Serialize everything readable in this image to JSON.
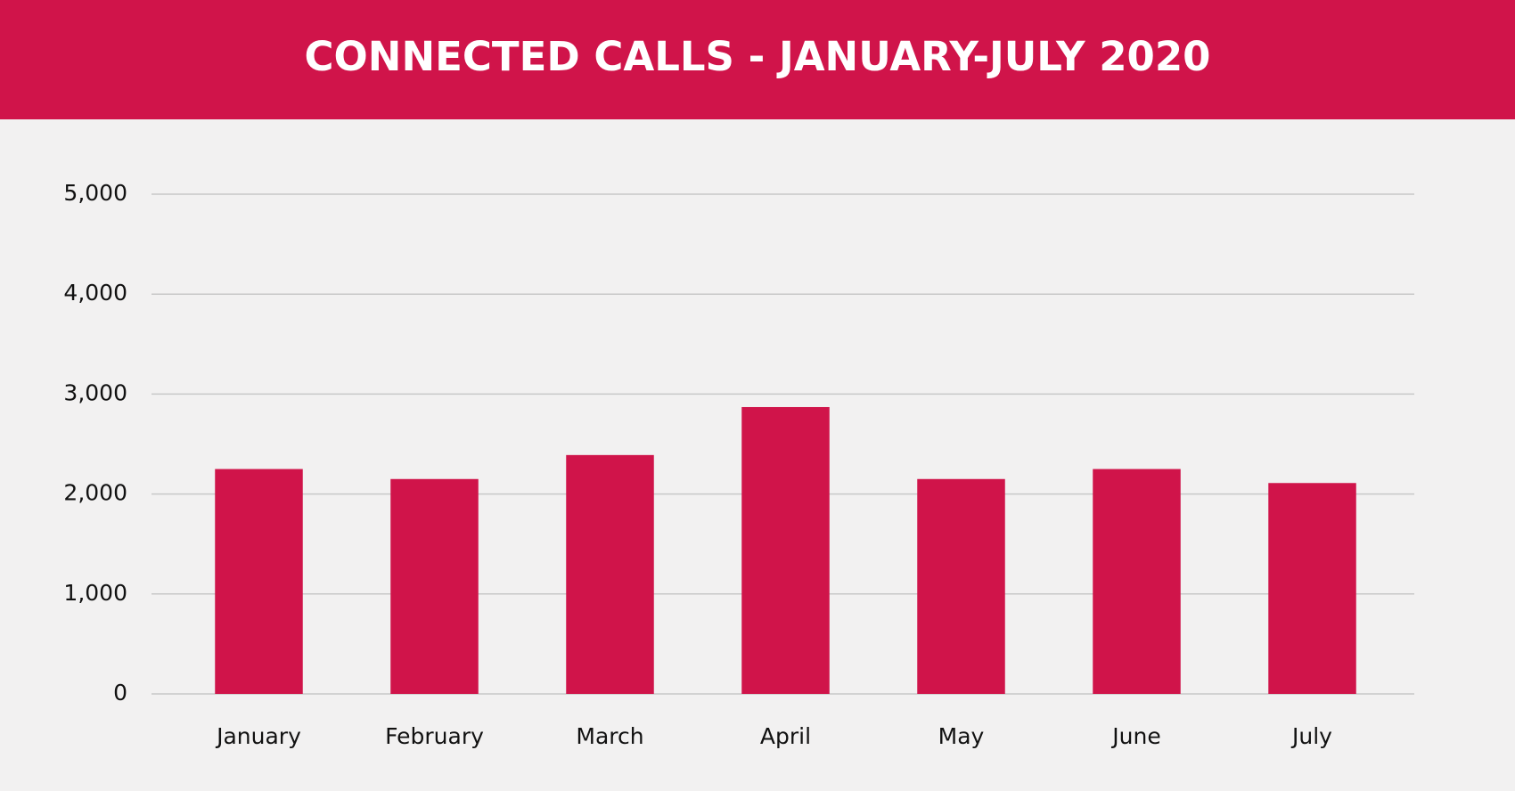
{
  "chart_data": {
    "type": "bar",
    "title": "CONNECTED CALLS - JANUARY-JULY 2020",
    "categories": [
      "January",
      "February",
      "March",
      "April",
      "May",
      "June",
      "July"
    ],
    "values": [
      2250,
      2150,
      2390,
      2870,
      2150,
      2250,
      2110
    ],
    "color": "#d0144a",
    "ylim": [
      0,
      5000
    ],
    "yticks": [
      0,
      {
        "value": 1000,
        "label": "1,000"
      },
      {
        "value": 2000,
        "label": "2,000"
      },
      {
        "value": 3000,
        "label": "3,000"
      },
      {
        "value": 4000,
        "label": "4,000"
      },
      {
        "value": 5000,
        "label": "5,000"
      }
    ],
    "grid": true
  }
}
